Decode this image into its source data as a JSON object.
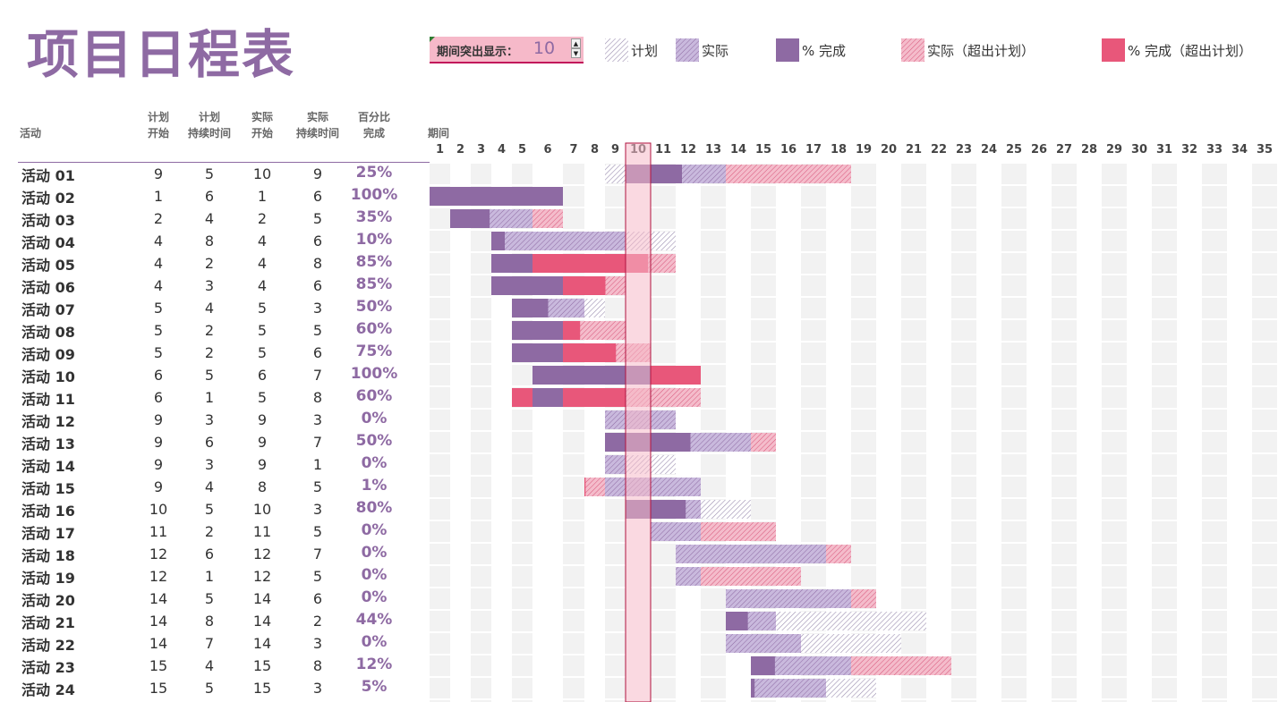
{
  "title": "项目日程表",
  "period_highlight": {
    "label": "期间突出显示：",
    "value": "10"
  },
  "legend": [
    {
      "label": "计划",
      "icon": "plan-hatch-swatch"
    },
    {
      "label": "实际",
      "icon": "actual-hatch-swatch"
    },
    {
      "label": "% 完成",
      "icon": "percent-solid-swatch"
    },
    {
      "label": "实际（超出计划）",
      "icon": "actual-over-hatch-swatch"
    },
    {
      "label": "% 完成（超出计划）",
      "icon": "percent-over-solid-swatch"
    }
  ],
  "headers": {
    "activity": "活动",
    "plan_start": [
      "计划",
      "开始"
    ],
    "plan_duration": [
      "计划",
      "持续时间"
    ],
    "actual_start": [
      "实际",
      "开始"
    ],
    "actual_duration": [
      "实际",
      "持续时间"
    ],
    "percent_complete": [
      "百分比",
      "完成"
    ],
    "period": "期间"
  },
  "periods": [
    "1",
    "2",
    "3",
    "4",
    "5",
    "6",
    "7",
    "8",
    "9",
    "10",
    "11",
    "12",
    "13",
    "14",
    "15",
    "16",
    "17",
    "18",
    "19",
    "20",
    "21",
    "22",
    "23",
    "24",
    "25",
    "26",
    "27",
    "28",
    "29",
    "30",
    "31",
    "32",
    "33",
    "34",
    "35"
  ],
  "colors": {
    "purple": "#8e6aa3",
    "pink": "#e8577a",
    "plan_hatch": "#9c8fb0",
    "actual_fill": "#c9b9dd",
    "highlight": "#f6b9c9",
    "shade": "#f2f2f2"
  },
  "activities": [
    {
      "name": "活动 01",
      "plan_start": 9,
      "plan_duration": 5,
      "actual_start": 10,
      "actual_duration": 9,
      "percent": "25%"
    },
    {
      "name": "活动 02",
      "plan_start": 1,
      "plan_duration": 6,
      "actual_start": 1,
      "actual_duration": 6,
      "percent": "100%"
    },
    {
      "name": "活动 03",
      "plan_start": 2,
      "plan_duration": 4,
      "actual_start": 2,
      "actual_duration": 5,
      "percent": "35%"
    },
    {
      "name": "活动 04",
      "plan_start": 4,
      "plan_duration": 8,
      "actual_start": 4,
      "actual_duration": 6,
      "percent": "10%"
    },
    {
      "name": "活动 05",
      "plan_start": 4,
      "plan_duration": 2,
      "actual_start": 4,
      "actual_duration": 8,
      "percent": "85%"
    },
    {
      "name": "活动 06",
      "plan_start": 4,
      "plan_duration": 3,
      "actual_start": 4,
      "actual_duration": 6,
      "percent": "85%"
    },
    {
      "name": "活动 07",
      "plan_start": 5,
      "plan_duration": 4,
      "actual_start": 5,
      "actual_duration": 3,
      "percent": "50%"
    },
    {
      "name": "活动 08",
      "plan_start": 5,
      "plan_duration": 2,
      "actual_start": 5,
      "actual_duration": 5,
      "percent": "60%"
    },
    {
      "name": "活动 09",
      "plan_start": 5,
      "plan_duration": 2,
      "actual_start": 5,
      "actual_duration": 6,
      "percent": "75%"
    },
    {
      "name": "活动 10",
      "plan_start": 6,
      "plan_duration": 5,
      "actual_start": 6,
      "actual_duration": 7,
      "percent": "100%"
    },
    {
      "name": "活动 11",
      "plan_start": 6,
      "plan_duration": 1,
      "actual_start": 5,
      "actual_duration": 8,
      "percent": "60%"
    },
    {
      "name": "活动 12",
      "plan_start": 9,
      "plan_duration": 3,
      "actual_start": 9,
      "actual_duration": 3,
      "percent": "0%"
    },
    {
      "name": "活动 13",
      "plan_start": 9,
      "plan_duration": 6,
      "actual_start": 9,
      "actual_duration": 7,
      "percent": "50%"
    },
    {
      "name": "活动 14",
      "plan_start": 9,
      "plan_duration": 3,
      "actual_start": 9,
      "actual_duration": 1,
      "percent": "0%"
    },
    {
      "name": "活动 15",
      "plan_start": 9,
      "plan_duration": 4,
      "actual_start": 8,
      "actual_duration": 5,
      "percent": "1%"
    },
    {
      "name": "活动 16",
      "plan_start": 10,
      "plan_duration": 5,
      "actual_start": 10,
      "actual_duration": 3,
      "percent": "80%"
    },
    {
      "name": "活动 17",
      "plan_start": 11,
      "plan_duration": 2,
      "actual_start": 11,
      "actual_duration": 5,
      "percent": "0%"
    },
    {
      "name": "活动 18",
      "plan_start": 12,
      "plan_duration": 6,
      "actual_start": 12,
      "actual_duration": 7,
      "percent": "0%"
    },
    {
      "name": "活动 19",
      "plan_start": 12,
      "plan_duration": 1,
      "actual_start": 12,
      "actual_duration": 5,
      "percent": "0%"
    },
    {
      "name": "活动 20",
      "plan_start": 14,
      "plan_duration": 5,
      "actual_start": 14,
      "actual_duration": 6,
      "percent": "0%"
    },
    {
      "name": "活动 21",
      "plan_start": 14,
      "plan_duration": 8,
      "actual_start": 14,
      "actual_duration": 2,
      "percent": "44%"
    },
    {
      "name": "活动 22",
      "plan_start": 14,
      "plan_duration": 7,
      "actual_start": 14,
      "actual_duration": 3,
      "percent": "0%"
    },
    {
      "name": "活动 23",
      "plan_start": 15,
      "plan_duration": 4,
      "actual_start": 15,
      "actual_duration": 8,
      "percent": "12%"
    },
    {
      "name": "活动 24",
      "plan_start": 15,
      "plan_duration": 5,
      "actual_start": 15,
      "actual_duration": 3,
      "percent": "5%"
    }
  ]
}
